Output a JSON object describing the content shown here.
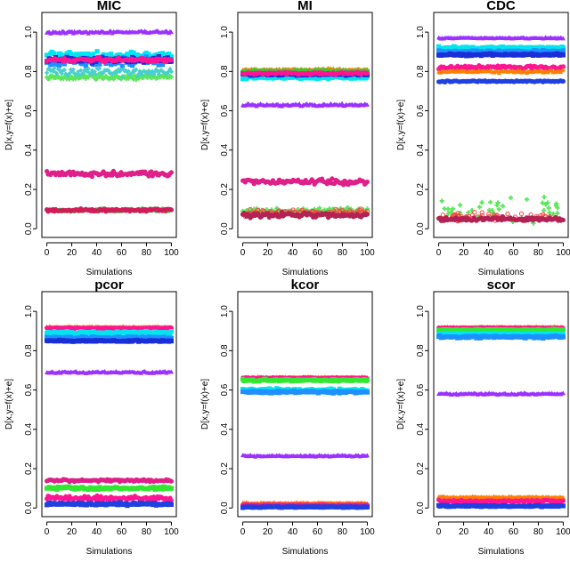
{
  "figure": {
    "background": "#ffffff"
  },
  "chart_data": [
    {
      "type": "scatter",
      "title": "MIC",
      "xlabel": "Simulations",
      "ylabel": "D[x,y=f(x)+e]",
      "xlim": [
        0,
        100
      ],
      "ylim": [
        0,
        1.1
      ],
      "xticks": [
        "0",
        "20",
        "40",
        "60",
        "80",
        "100"
      ],
      "yticks": [
        "0.0",
        "0.2",
        "0.4",
        "0.6",
        "0.8",
        "1.0"
      ],
      "series": [
        {
          "marker": "triangle",
          "color": "#9b30ff",
          "mean": 1.0,
          "spread": 0.01,
          "n": 100
        },
        {
          "marker": "square",
          "color": "#00e5ee",
          "mean": 0.88,
          "spread": 0.03,
          "n": 100
        },
        {
          "marker": "square",
          "color": "#1e90ff",
          "mean": 0.85,
          "spread": 0.03,
          "n": 100
        },
        {
          "marker": "square",
          "color": "#1c2fd6",
          "mean": 0.86,
          "spread": 0.02,
          "n": 100
        },
        {
          "marker": "cross",
          "color": "#5ce65c",
          "mean": 0.77,
          "spread": 0.02,
          "n": 100
        },
        {
          "marker": "diamond",
          "color": "#48d1cc",
          "mean": 0.8,
          "spread": 0.03,
          "n": 100
        },
        {
          "marker": "circle-filled",
          "color": "#ff1493",
          "mean": 0.86,
          "spread": 0.015,
          "n": 100
        },
        {
          "marker": "circle-filled",
          "color": "#e0208a",
          "mean": 0.28,
          "spread": 0.02,
          "n": 100
        },
        {
          "marker": "circle-filled",
          "color": "#32cd32",
          "mean": 0.095,
          "spread": 0.01,
          "n": 100
        },
        {
          "marker": "circle-filled",
          "color": "#d21c5a",
          "mean": 0.095,
          "spread": 0.01,
          "n": 100
        }
      ]
    },
    {
      "type": "scatter",
      "title": "MI",
      "xlabel": "Simulations",
      "ylabel": "D[x,y=f(x)+e]",
      "xlim": [
        0,
        100
      ],
      "ylim": [
        0,
        1.1
      ],
      "xticks": [
        "0",
        "20",
        "40",
        "60",
        "80",
        "100"
      ],
      "yticks": [
        "0.0",
        "0.2",
        "0.4",
        "0.6",
        "0.8",
        "1.0"
      ],
      "series": [
        {
          "marker": "triangle",
          "color": "#ff7f00",
          "mean": 0.81,
          "spread": 0.008,
          "n": 100
        },
        {
          "marker": "square",
          "color": "#32cd32",
          "mean": 0.8,
          "spread": 0.008,
          "n": 100
        },
        {
          "marker": "square",
          "color": "#00e5ee",
          "mean": 0.77,
          "spread": 0.01,
          "n": 100
        },
        {
          "marker": "square",
          "color": "#1c2fd6",
          "mean": 0.785,
          "spread": 0.008,
          "n": 100
        },
        {
          "marker": "circle-filled",
          "color": "#ff1493",
          "mean": 0.79,
          "spread": 0.01,
          "n": 100
        },
        {
          "marker": "triangle",
          "color": "#9b30ff",
          "mean": 0.63,
          "spread": 0.01,
          "n": 100
        },
        {
          "marker": "circle-filled",
          "color": "#e0208a",
          "mean": 0.24,
          "spread": 0.02,
          "n": 100
        },
        {
          "marker": "cross",
          "color": "#5ce65c",
          "mean": 0.09,
          "spread": 0.025,
          "n": 100
        },
        {
          "marker": "circle-open",
          "color": "#ff4040",
          "mean": 0.08,
          "spread": 0.025,
          "n": 100
        },
        {
          "marker": "circle-filled",
          "color": "#b22252",
          "mean": 0.07,
          "spread": 0.02,
          "n": 100
        }
      ]
    },
    {
      "type": "scatter",
      "title": "CDC",
      "xlabel": "Simulations",
      "ylabel": "D[x,y=f(x)+e]",
      "xlim": [
        0,
        100
      ],
      "ylim": [
        0,
        1.1
      ],
      "xticks": [
        "0",
        "20",
        "40",
        "60",
        "80",
        "100"
      ],
      "yticks": [
        "0.0",
        "0.2",
        "0.4",
        "0.6",
        "0.8",
        "1.0"
      ],
      "series": [
        {
          "marker": "triangle",
          "color": "#9b30ff",
          "mean": 0.97,
          "spread": 0.005,
          "n": 100
        },
        {
          "marker": "square",
          "color": "#00e5ee",
          "mean": 0.92,
          "spread": 0.008,
          "n": 100
        },
        {
          "marker": "square",
          "color": "#1e90ff",
          "mean": 0.9,
          "spread": 0.01,
          "n": 100
        },
        {
          "marker": "square",
          "color": "#1c2fd6",
          "mean": 0.885,
          "spread": 0.008,
          "n": 100
        },
        {
          "marker": "circle-filled",
          "color": "#ff1493",
          "mean": 0.82,
          "spread": 0.015,
          "n": 100
        },
        {
          "marker": "triangle",
          "color": "#ff7f00",
          "mean": 0.8,
          "spread": 0.01,
          "n": 100
        },
        {
          "marker": "circle-filled",
          "color": "#2040e0",
          "mean": 0.75,
          "spread": 0.006,
          "n": 100
        },
        {
          "marker": "cross",
          "color": "#5ce65c",
          "mean": 0.1,
          "spread": 0.1,
          "n": 40
        },
        {
          "marker": "circle-open",
          "color": "#ff4040",
          "mean": 0.06,
          "spread": 0.03,
          "n": 60
        },
        {
          "marker": "circle-filled",
          "color": "#b22252",
          "mean": 0.05,
          "spread": 0.015,
          "n": 100
        }
      ]
    },
    {
      "type": "scatter",
      "title": "pcor",
      "xlabel": "Simulations",
      "ylabel": "D[x,y=f(x)+e]",
      "xlim": [
        0,
        100
      ],
      "ylim": [
        0,
        1.1
      ],
      "xticks": [
        "0",
        "20",
        "40",
        "60",
        "80",
        "100"
      ],
      "yticks": [
        "0.0",
        "0.2",
        "0.4",
        "0.6",
        "0.8",
        "1.0"
      ],
      "series": [
        {
          "marker": "triangle",
          "color": "#ff7f00",
          "mean": 0.92,
          "spread": 0.004,
          "n": 100
        },
        {
          "marker": "circle-filled",
          "color": "#ff1493",
          "mean": 0.915,
          "spread": 0.004,
          "n": 100
        },
        {
          "marker": "square",
          "color": "#00e5ee",
          "mean": 0.89,
          "spread": 0.012,
          "n": 100
        },
        {
          "marker": "square",
          "color": "#1e90ff",
          "mean": 0.865,
          "spread": 0.01,
          "n": 100
        },
        {
          "marker": "square",
          "color": "#1c2fd6",
          "mean": 0.85,
          "spread": 0.006,
          "n": 100
        },
        {
          "marker": "triangle",
          "color": "#9b30ff",
          "mean": 0.69,
          "spread": 0.008,
          "n": 100
        },
        {
          "marker": "circle-filled",
          "color": "#e0208a",
          "mean": 0.14,
          "spread": 0.008,
          "n": 100
        },
        {
          "marker": "square",
          "color": "#32e632",
          "mean": 0.1,
          "spread": 0.012,
          "n": 100
        },
        {
          "marker": "circle-filled",
          "color": "#ff1493",
          "mean": 0.05,
          "spread": 0.015,
          "n": 100
        },
        {
          "marker": "square",
          "color": "#2040e0",
          "mean": 0.02,
          "spread": 0.01,
          "n": 100
        }
      ]
    },
    {
      "type": "scatter",
      "title": "kcor",
      "xlabel": "Simulations",
      "ylabel": "D[x,y=f(x)+e]",
      "xlim": [
        0,
        100
      ],
      "ylim": [
        0,
        1.1
      ],
      "xticks": [
        "0",
        "20",
        "40",
        "60",
        "80",
        "100"
      ],
      "yticks": [
        "0.0",
        "0.2",
        "0.4",
        "0.6",
        "0.8",
        "1.0"
      ],
      "series": [
        {
          "marker": "triangle",
          "color": "#ff7f00",
          "mean": 0.665,
          "spread": 0.005,
          "n": 100
        },
        {
          "marker": "circle-filled",
          "color": "#ff1493",
          "mean": 0.66,
          "spread": 0.005,
          "n": 100
        },
        {
          "marker": "square",
          "color": "#32e632",
          "mean": 0.65,
          "spread": 0.008,
          "n": 100
        },
        {
          "marker": "square",
          "color": "#00e5ee",
          "mean": 0.6,
          "spread": 0.01,
          "n": 100
        },
        {
          "marker": "square",
          "color": "#1e90ff",
          "mean": 0.59,
          "spread": 0.008,
          "n": 100
        },
        {
          "marker": "triangle",
          "color": "#9b30ff",
          "mean": 0.265,
          "spread": 0.006,
          "n": 100
        },
        {
          "marker": "triangle",
          "color": "#ff7f00",
          "mean": 0.025,
          "spread": 0.005,
          "n": 100
        },
        {
          "marker": "circle-filled",
          "color": "#ff1493",
          "mean": 0.015,
          "spread": 0.006,
          "n": 100
        },
        {
          "marker": "square",
          "color": "#2040e0",
          "mean": 0.005,
          "spread": 0.004,
          "n": 100
        }
      ]
    },
    {
      "type": "scatter",
      "title": "scor",
      "xlabel": "Simulations",
      "ylabel": "D[x,y=f(x)+e]",
      "xlim": [
        0,
        100
      ],
      "ylim": [
        0,
        1.1
      ],
      "xticks": [
        "0",
        "20",
        "40",
        "60",
        "80",
        "100"
      ],
      "yticks": [
        "0.0",
        "0.2",
        "0.4",
        "0.6",
        "0.8",
        "1.0"
      ],
      "series": [
        {
          "marker": "triangle",
          "color": "#ff7f00",
          "mean": 0.92,
          "spread": 0.004,
          "n": 100
        },
        {
          "marker": "circle-filled",
          "color": "#ff1493",
          "mean": 0.915,
          "spread": 0.004,
          "n": 100
        },
        {
          "marker": "square",
          "color": "#32e632",
          "mean": 0.905,
          "spread": 0.006,
          "n": 100
        },
        {
          "marker": "square",
          "color": "#00e5ee",
          "mean": 0.885,
          "spread": 0.008,
          "n": 100
        },
        {
          "marker": "square",
          "color": "#1e90ff",
          "mean": 0.87,
          "spread": 0.008,
          "n": 100
        },
        {
          "marker": "triangle",
          "color": "#9b30ff",
          "mean": 0.58,
          "spread": 0.007,
          "n": 100
        },
        {
          "marker": "triangle",
          "color": "#ff7f00",
          "mean": 0.055,
          "spread": 0.006,
          "n": 100
        },
        {
          "marker": "circle-filled",
          "color": "#ff1493",
          "mean": 0.035,
          "spread": 0.008,
          "n": 100
        },
        {
          "marker": "square",
          "color": "#2040e0",
          "mean": 0.01,
          "spread": 0.006,
          "n": 100
        }
      ]
    }
  ]
}
